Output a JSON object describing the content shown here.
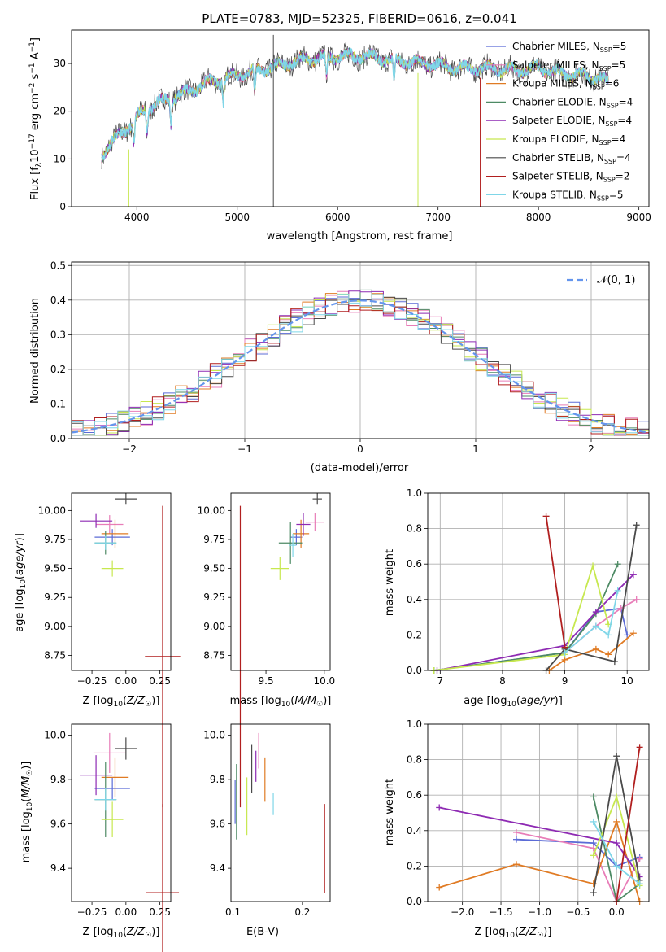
{
  "title": "PLATE=0783, MJD=52325, FIBERID=0616, z=0.041",
  "colors": {
    "Chabrier MILES": "#5b6bd6",
    "Salpeter MILES": "#e87db8",
    "Kroupa MILES": "#e07b24",
    "Chabrier ELODIE": "#4d8a64",
    "Salpeter ELODIE": "#8e2ab3",
    "Kroupa ELODIE": "#c7e84f",
    "Chabrier STELIB": "#4a4a4a",
    "Salpeter STELIB": "#b11f1f",
    "Kroupa STELIB": "#7fd6e8",
    "normal": "#6495ed",
    "grid": "#b0b0b0"
  },
  "chart_data": [
    {
      "id": "spectrum",
      "type": "line",
      "title": "PLATE=0783, MJD=52325, FIBERID=0616, z=0.041",
      "xlabel": "wavelength [Angstrom, rest frame]",
      "ylabel": "Flux [f_λ 10^-17 erg cm^-2 s^-1 A^-1]",
      "xlim": [
        3350,
        9100
      ],
      "ylim": [
        0,
        37
      ],
      "xticks": [
        4000,
        5000,
        6000,
        7000,
        8000,
        9000
      ],
      "yticks": [
        0,
        10,
        20,
        30
      ],
      "grid": false,
      "legend_position": "right",
      "legend": [
        {
          "text": "Chabrier MILES, N",
          "sub": "SSP",
          "tail": "=5",
          "series": "Chabrier MILES"
        },
        {
          "text": "Salpeter MILES, N",
          "sub": "SSP",
          "tail": "=5",
          "series": "Salpeter MILES"
        },
        {
          "text": "Kroupa MILES, N",
          "sub": "SSP",
          "tail": "=6",
          "series": "Kroupa MILES"
        },
        {
          "text": "Chabrier ELODIE, N",
          "sub": "SSP",
          "tail": "=4",
          "series": "Chabrier ELODIE"
        },
        {
          "text": "Salpeter ELODIE, N",
          "sub": "SSP",
          "tail": "=4",
          "series": "Salpeter ELODIE"
        },
        {
          "text": "Kroupa ELODIE, N",
          "sub": "SSP",
          "tail": "=4",
          "series": "Kroupa ELODIE"
        },
        {
          "text": "Chabrier STELIB, N",
          "sub": "SSP",
          "tail": "=4",
          "series": "Chabrier STELIB"
        },
        {
          "text": "Salpeter STELIB, N",
          "sub": "SSP",
          "tail": "=2",
          "series": "Salpeter STELIB"
        },
        {
          "text": "Kroupa STELIB, N",
          "sub": "SSP",
          "tail": "=5",
          "series": "Kroupa STELIB"
        }
      ],
      "continuum": [
        [
          3650,
          11
        ],
        [
          3750,
          13
        ],
        [
          3850,
          16
        ],
        [
          3950,
          17
        ],
        [
          4050,
          20
        ],
        [
          4150,
          21
        ],
        [
          4300,
          22.5
        ],
        [
          4500,
          24
        ],
        [
          4700,
          26
        ],
        [
          4900,
          27
        ],
        [
          5100,
          28
        ],
        [
          5300,
          29
        ],
        [
          5500,
          30
        ],
        [
          5700,
          31
        ],
        [
          6000,
          31.5
        ],
        [
          6300,
          31.5
        ],
        [
          6600,
          30.5
        ],
        [
          6900,
          30
        ],
        [
          7200,
          29
        ],
        [
          7500,
          29
        ],
        [
          7800,
          28.5
        ],
        [
          8000,
          29
        ],
        [
          8200,
          28
        ],
        [
          8400,
          27.5
        ],
        [
          8600,
          27
        ],
        [
          8700,
          26
        ]
      ],
      "spikes": [
        {
          "x": 3920,
          "y0": 0,
          "y1": 12,
          "series": "Kroupa ELODIE"
        },
        {
          "x": 5360,
          "y0": 0,
          "y1": 36,
          "series": "Chabrier STELIB"
        },
        {
          "x": 6800,
          "y0": 0,
          "y1": 28,
          "series": "Kroupa ELODIE"
        },
        {
          "x": 7420,
          "y0": 0,
          "y1": 27,
          "series": "Salpeter STELIB"
        }
      ]
    },
    {
      "id": "residuals",
      "type": "histogram",
      "xlabel": "(data-model)/error",
      "ylabel": "Normed distribution",
      "xlim": [
        -2.5,
        2.5
      ],
      "ylim": [
        0,
        0.51
      ],
      "xticks": [
        -2,
        -1,
        0,
        1,
        2
      ],
      "yticks": [
        0.0,
        0.1,
        0.2,
        0.3,
        0.4,
        0.5
      ],
      "grid": true,
      "legend_position": "top-right",
      "legend": "𝒩(0, 1)",
      "bin_width": 0.1,
      "series": "all nine model fits"
    },
    {
      "id": "age-vs-Z",
      "type": "errorbar",
      "xlabel": "Z [log10(Z/Z☉)]",
      "ylabel": "age [log10(age/yr)]",
      "xlim": [
        -0.4,
        0.33
      ],
      "ylim": [
        8.62,
        10.15
      ],
      "xticks": [
        -0.25,
        0.0,
        0.25
      ],
      "yticks": [
        8.75,
        9.0,
        9.25,
        9.5,
        9.75,
        10.0
      ],
      "points": [
        {
          "series": "Chabrier MILES",
          "x": -0.1,
          "xerr": 0.13,
          "y": 9.77,
          "yerr": 0.07
        },
        {
          "series": "Salpeter MILES",
          "x": -0.12,
          "xerr": 0.1,
          "y": 9.88,
          "yerr": 0.08
        },
        {
          "series": "Kroupa MILES",
          "x": -0.08,
          "xerr": 0.1,
          "y": 9.8,
          "yerr": 0.12
        },
        {
          "series": "Chabrier ELODIE",
          "x": -0.15,
          "xerr": 0.08,
          "y": 9.72,
          "yerr": 0.1
        },
        {
          "series": "Salpeter ELODIE",
          "x": -0.22,
          "xerr": 0.12,
          "y": 9.91,
          "yerr": 0.06
        },
        {
          "series": "Kroupa ELODIE",
          "x": -0.1,
          "xerr": 0.08,
          "y": 9.5,
          "yerr": 0.07
        },
        {
          "series": "Chabrier STELIB",
          "x": 0.0,
          "xerr": 0.08,
          "y": 10.1,
          "yerr": 0.05
        },
        {
          "series": "Salpeter STELIB",
          "x": 0.27,
          "xerr": 0.13,
          "y": 8.74,
          "yerr": 1.3
        },
        {
          "series": "Kroupa STELIB",
          "x": -0.15,
          "xerr": 0.08,
          "y": 9.72,
          "yerr": 0.06
        }
      ]
    },
    {
      "id": "age-vs-mass",
      "type": "errorbar",
      "xlabel": "mass [log10(M/M☉)]",
      "ylabel": "",
      "xlim": [
        9.2,
        10.05
      ],
      "ylim": [
        8.62,
        10.15
      ],
      "xticks": [
        9.5,
        10.0
      ],
      "yticks": [
        8.75,
        9.0,
        9.25,
        9.5,
        9.75,
        10.0
      ],
      "points": [
        {
          "series": "Chabrier MILES",
          "x": 9.76,
          "xerr": 0.05,
          "y": 9.77,
          "yerr": 0.07
        },
        {
          "series": "Salpeter MILES",
          "x": 9.92,
          "xerr": 0.08,
          "y": 9.9,
          "yerr": 0.08
        },
        {
          "series": "Kroupa MILES",
          "x": 9.8,
          "xerr": 0.07,
          "y": 9.8,
          "yerr": 0.12
        },
        {
          "series": "Chabrier ELODIE",
          "x": 9.71,
          "xerr": 0.1,
          "y": 9.72,
          "yerr": 0.18
        },
        {
          "series": "Salpeter ELODIE",
          "x": 9.82,
          "xerr": 0.06,
          "y": 9.88,
          "yerr": 0.1
        },
        {
          "series": "Kroupa ELODIE",
          "x": 9.62,
          "xerr": 0.08,
          "y": 9.5,
          "yerr": 0.1
        },
        {
          "series": "Chabrier STELIB",
          "x": 9.94,
          "xerr": 0.04,
          "y": 10.1,
          "yerr": 0.05
        },
        {
          "series": "Salpeter STELIB",
          "x": 9.28,
          "xerr": 0.0,
          "y": 8.74,
          "yerr": 1.3
        },
        {
          "series": "Kroupa STELIB",
          "x": 9.73,
          "xerr": 0.03,
          "y": 9.7,
          "yerr": 0.1
        }
      ]
    },
    {
      "id": "weight-vs-age",
      "type": "line",
      "xlabel": "age [log10(age/yr)]",
      "ylabel": "mass weight",
      "xlim": [
        6.8,
        10.35
      ],
      "ylim": [
        0,
        1.0
      ],
      "xticks": [
        7,
        8,
        9,
        10
      ],
      "yticks": [
        0.0,
        0.2,
        0.4,
        0.6,
        0.8,
        1.0
      ],
      "grid": true,
      "series": [
        {
          "name": "Chabrier MILES",
          "x": [
            6.9,
            9.0,
            9.5,
            9.9,
            10.0
          ],
          "y": [
            0.0,
            0.1,
            0.33,
            0.35,
            0.2
          ]
        },
        {
          "name": "Salpeter MILES",
          "x": [
            9.0,
            9.5,
            9.9,
            10.15
          ],
          "y": [
            0.1,
            0.25,
            0.35,
            0.4
          ]
        },
        {
          "name": "Kroupa MILES",
          "x": [
            8.75,
            9.0,
            9.5,
            9.7,
            10.1
          ],
          "y": [
            0.0,
            0.06,
            0.12,
            0.09,
            0.21
          ]
        },
        {
          "name": "Chabrier ELODIE",
          "x": [
            6.9,
            9.0,
            9.5,
            9.85
          ],
          "y": [
            0.0,
            0.1,
            0.32,
            0.6
          ]
        },
        {
          "name": "Salpeter ELODIE",
          "x": [
            6.95,
            9.0,
            9.5,
            10.1
          ],
          "y": [
            0.0,
            0.14,
            0.33,
            0.54
          ]
        },
        {
          "name": "Kroupa ELODIE",
          "x": [
            6.9,
            9.0,
            9.45,
            9.7
          ],
          "y": [
            0.0,
            0.09,
            0.59,
            0.26
          ]
        },
        {
          "name": "Chabrier STELIB",
          "x": [
            8.7,
            9.0,
            9.8,
            10.15
          ],
          "y": [
            0.0,
            0.12,
            0.05,
            0.82
          ]
        },
        {
          "name": "Salpeter STELIB",
          "x": [
            8.7,
            9.0
          ],
          "y": [
            0.87,
            0.13
          ]
        },
        {
          "name": "Kroupa STELIB",
          "x": [
            9.0,
            9.5,
            9.7,
            9.85
          ],
          "y": [
            0.1,
            0.25,
            0.2,
            0.45
          ]
        }
      ]
    },
    {
      "id": "mass-vs-Z",
      "type": "errorbar",
      "xlabel": "Z [log10(Z/Z☉)]",
      "ylabel": "mass [log10(M/M☉)]",
      "xlim": [
        -0.4,
        0.33
      ],
      "ylim": [
        9.25,
        10.05
      ],
      "xticks": [
        -0.25,
        0.0,
        0.25
      ],
      "yticks": [
        9.4,
        9.6,
        9.8,
        10.0
      ],
      "points": [
        {
          "series": "Chabrier MILES",
          "x": -0.1,
          "xerr": 0.13,
          "y": 9.76,
          "yerr": 0.05
        },
        {
          "series": "Salpeter MILES",
          "x": -0.12,
          "xerr": 0.12,
          "y": 9.92,
          "yerr": 0.09
        },
        {
          "series": "Kroupa MILES",
          "x": -0.08,
          "xerr": 0.1,
          "y": 9.81,
          "yerr": 0.09
        },
        {
          "series": "Chabrier ELODIE",
          "x": -0.15,
          "xerr": 0.08,
          "y": 9.71,
          "yerr": 0.17
        },
        {
          "series": "Salpeter ELODIE",
          "x": -0.22,
          "xerr": 0.12,
          "y": 9.82,
          "yerr": 0.09
        },
        {
          "series": "Kroupa ELODIE",
          "x": -0.1,
          "xerr": 0.08,
          "y": 9.62,
          "yerr": 0.08
        },
        {
          "series": "Chabrier STELIB",
          "x": 0.0,
          "xerr": 0.08,
          "y": 9.94,
          "yerr": 0.05
        },
        {
          "series": "Salpeter STELIB",
          "x": 0.27,
          "xerr": 0.12,
          "y": 9.29,
          "yerr": 0.4
        },
        {
          "series": "Kroupa STELIB",
          "x": -0.15,
          "xerr": 0.08,
          "y": 9.71,
          "yerr": 0.05
        }
      ]
    },
    {
      "id": "mass-vs-ebv",
      "type": "errorbar",
      "xlabel": "E(B-V)",
      "ylabel": "",
      "xlim": [
        0.097,
        0.24
      ],
      "ylim": [
        9.25,
        10.05
      ],
      "xticks": [
        0.1,
        0.2
      ],
      "yticks": [
        9.4,
        9.6,
        9.8,
        10.0
      ],
      "points": [
        {
          "series": "Chabrier MILES",
          "x": 0.103,
          "xerr": 0,
          "y": 9.7,
          "yerr": 0.1
        },
        {
          "series": "Salpeter MILES",
          "x": 0.137,
          "xerr": 0,
          "y": 9.93,
          "yerr": 0.08
        },
        {
          "series": "Kroupa MILES",
          "x": 0.146,
          "xerr": 0,
          "y": 9.8,
          "yerr": 0.1
        },
        {
          "series": "Chabrier ELODIE",
          "x": 0.105,
          "xerr": 0,
          "y": 9.7,
          "yerr": 0.17
        },
        {
          "series": "Salpeter ELODIE",
          "x": 0.133,
          "xerr": 0,
          "y": 9.86,
          "yerr": 0.07
        },
        {
          "series": "Kroupa ELODIE",
          "x": 0.12,
          "xerr": 0,
          "y": 9.68,
          "yerr": 0.13
        },
        {
          "series": "Chabrier STELIB",
          "x": 0.127,
          "xerr": 0,
          "y": 9.85,
          "yerr": 0.11
        },
        {
          "series": "Salpeter STELIB",
          "x": 0.232,
          "xerr": 0,
          "y": 9.49,
          "yerr": 0.2
        },
        {
          "series": "Kroupa STELIB",
          "x": 0.158,
          "xerr": 0,
          "y": 9.69,
          "yerr": 0.05
        }
      ]
    },
    {
      "id": "weight-vs-Z",
      "type": "line",
      "xlabel": "Z [log10(Z/Z☉)]",
      "ylabel": "mass weight",
      "xlim": [
        -2.45,
        0.42
      ],
      "ylim": [
        0,
        1.0
      ],
      "xticks": [
        -2.0,
        -1.5,
        -1.0,
        -0.5,
        0.0
      ],
      "yticks": [
        0.0,
        0.2,
        0.4,
        0.6,
        0.8,
        1.0
      ],
      "grid": true,
      "series": [
        {
          "name": "Chabrier MILES",
          "x": [
            -1.3,
            -0.3,
            0.0,
            0.3
          ],
          "y": [
            0.35,
            0.33,
            0.2,
            0.25
          ]
        },
        {
          "name": "Salpeter MILES",
          "x": [
            -1.3,
            -0.3,
            0.0,
            0.3
          ],
          "y": [
            0.39,
            0.3,
            0.0,
            0.24
          ]
        },
        {
          "name": "Kroupa MILES",
          "x": [
            -2.3,
            -1.3,
            -0.3,
            0.0,
            0.3
          ],
          "y": [
            0.08,
            0.21,
            0.1,
            0.45,
            0.0
          ]
        },
        {
          "name": "Chabrier ELODIE",
          "x": [
            -0.3,
            0.0,
            0.3
          ],
          "y": [
            0.59,
            0.0,
            0.1
          ]
        },
        {
          "name": "Salpeter ELODIE",
          "x": [
            -2.3,
            0.0,
            0.3
          ],
          "y": [
            0.53,
            0.33,
            0.14
          ]
        },
        {
          "name": "Kroupa ELODIE",
          "x": [
            -0.3,
            0.0,
            0.3
          ],
          "y": [
            0.26,
            0.59,
            0.09
          ]
        },
        {
          "name": "Chabrier STELIB",
          "x": [
            -0.3,
            0.0,
            0.3
          ],
          "y": [
            0.05,
            0.82,
            0.12
          ]
        },
        {
          "name": "Salpeter STELIB",
          "x": [
            0.0,
            0.3
          ],
          "y": [
            0.0,
            0.87
          ]
        },
        {
          "name": "Kroupa STELIB",
          "x": [
            -0.3,
            0.0,
            0.3
          ],
          "y": [
            0.45,
            0.2,
            0.1
          ]
        }
      ]
    }
  ],
  "labels": {
    "spec_title": "PLATE=0783, MJD=52325, FIBERID=0616, z=0.041",
    "spec_x": "wavelength [Angstrom, rest frame]",
    "hist_x": "(data-model)/error",
    "hist_y": "Normed distribution",
    "hist_legend": "𝒩(0, 1)",
    "e_x": "E(B-V)",
    "mw_y": "mass weight"
  }
}
